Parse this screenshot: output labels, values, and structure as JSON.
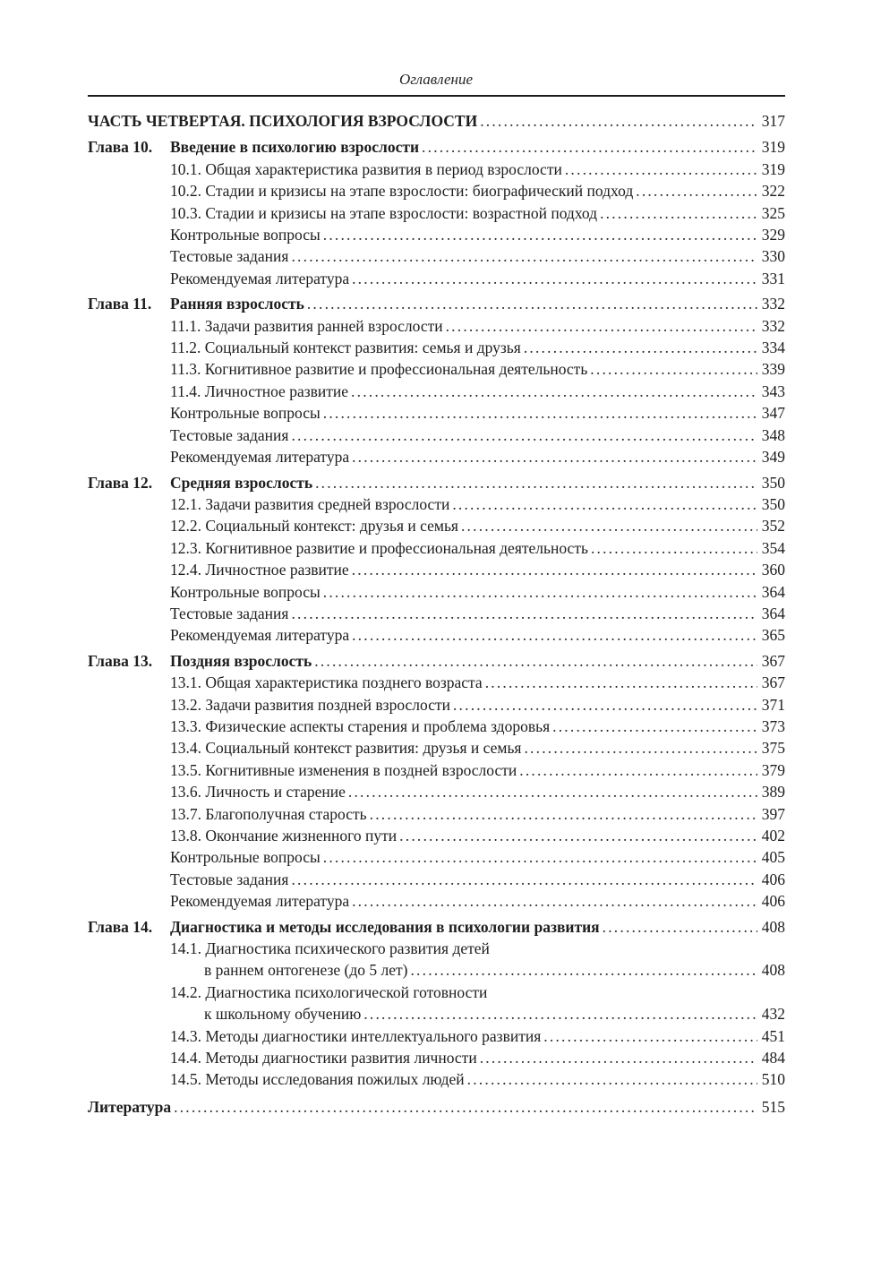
{
  "page": {
    "header": "Оглавление"
  },
  "toc": {
    "entries": [
      {
        "type": "part",
        "title": "ЧАСТЬ ЧЕТВЕРТАЯ. ПСИХОЛОГИЯ ВЗРОСЛОСТИ",
        "page": "317"
      },
      {
        "type": "chapter",
        "label": "Глава 10.",
        "title": "Введение в психологию взрослости",
        "page": "319"
      },
      {
        "type": "section",
        "title": "10.1. Общая характеристика развития в период взрослости",
        "page": "319"
      },
      {
        "type": "section",
        "title": "10.2. Стадии и кризисы на этапе взрослости: биографический подход",
        "page": "322"
      },
      {
        "type": "section",
        "title": "10.3. Стадии и кризисы на этапе взрослости: возрастной подход",
        "page": "325"
      },
      {
        "type": "section",
        "title": "Контрольные вопросы",
        "page": "329"
      },
      {
        "type": "section",
        "title": "Тестовые задания",
        "page": "330"
      },
      {
        "type": "section",
        "title": "Рекомендуемая литература",
        "page": "331"
      },
      {
        "type": "chapter",
        "label": "Глава 11.",
        "title": "Ранняя взрослость",
        "page": "332"
      },
      {
        "type": "section",
        "title": "11.1. Задачи развития ранней взрослости",
        "page": "332"
      },
      {
        "type": "section",
        "title": "11.2. Социальный контекст развития: семья и друзья",
        "page": "334"
      },
      {
        "type": "section",
        "title": "11.3. Когнитивное развитие и профессиональная деятельность",
        "page": "339"
      },
      {
        "type": "section",
        "title": "11.4. Личностное развитие",
        "page": "343"
      },
      {
        "type": "section",
        "title": "Контрольные вопросы",
        "page": "347"
      },
      {
        "type": "section",
        "title": "Тестовые задания",
        "page": "348"
      },
      {
        "type": "section",
        "title": "Рекомендуемая литература",
        "page": "349"
      },
      {
        "type": "chapter",
        "label": "Глава 12.",
        "title": "Средняя взрослость",
        "page": "350"
      },
      {
        "type": "section",
        "title": "12.1. Задачи развития средней взрослости",
        "page": "350"
      },
      {
        "type": "section",
        "title": "12.2. Социальный контекст: друзья и семья",
        "page": "352"
      },
      {
        "type": "section",
        "title": "12.3. Когнитивное развитие и профессиональная деятельность",
        "page": "354"
      },
      {
        "type": "section",
        "title": "12.4. Личностное развитие",
        "page": "360"
      },
      {
        "type": "section",
        "title": "Контрольные вопросы",
        "page": "364"
      },
      {
        "type": "section",
        "title": "Тестовые задания",
        "page": "364"
      },
      {
        "type": "section",
        "title": "Рекомендуемая литература",
        "page": "365"
      },
      {
        "type": "chapter",
        "label": "Глава 13.",
        "title": "Поздняя взрослость",
        "page": "367"
      },
      {
        "type": "section",
        "title": "13.1. Общая характеристика позднего возраста",
        "page": "367"
      },
      {
        "type": "section",
        "title": "13.2. Задачи развития поздней взрослости",
        "page": "371"
      },
      {
        "type": "section",
        "title": "13.3. Физические аспекты старения и проблема здоровья",
        "page": "373"
      },
      {
        "type": "section",
        "title": "13.4. Социальный контекст развития: друзья и семья",
        "page": "375"
      },
      {
        "type": "section",
        "title": "13.5. Когнитивные изменения в поздней взрослости",
        "page": "379"
      },
      {
        "type": "section",
        "title": "13.6. Личность и старение",
        "page": "389"
      },
      {
        "type": "section",
        "title": "13.7. Благополучная старость",
        "page": "397"
      },
      {
        "type": "section",
        "title": "13.8. Окончание жизненного пути",
        "page": "402"
      },
      {
        "type": "section",
        "title": "Контрольные вопросы",
        "page": "405"
      },
      {
        "type": "section",
        "title": "Тестовые задания",
        "page": "406"
      },
      {
        "type": "section",
        "title": "Рекомендуемая литература",
        "page": "406"
      },
      {
        "type": "chapter",
        "label": "Глава 14.",
        "title": "Диагностика и методы исследования в психологии развития",
        "page": "408"
      },
      {
        "type": "section2",
        "title": "14.1. Диагностика психического развития детей",
        "title2": "в раннем онтогенезе (до 5 лет)",
        "page": "408"
      },
      {
        "type": "section2",
        "title": "14.2. Диагностика психологической готовности",
        "title2": "к школьному обучению",
        "page": "432"
      },
      {
        "type": "section",
        "title": "14.3. Методы диагностики интеллектуального развития",
        "page": "451"
      },
      {
        "type": "section",
        "title": "14.4. Методы диагностики развития личности",
        "page": "484"
      },
      {
        "type": "section",
        "title": "14.5. Методы исследования пожилых людей",
        "page": "510"
      },
      {
        "type": "literature",
        "title": "Литература",
        "page": "515"
      }
    ]
  }
}
